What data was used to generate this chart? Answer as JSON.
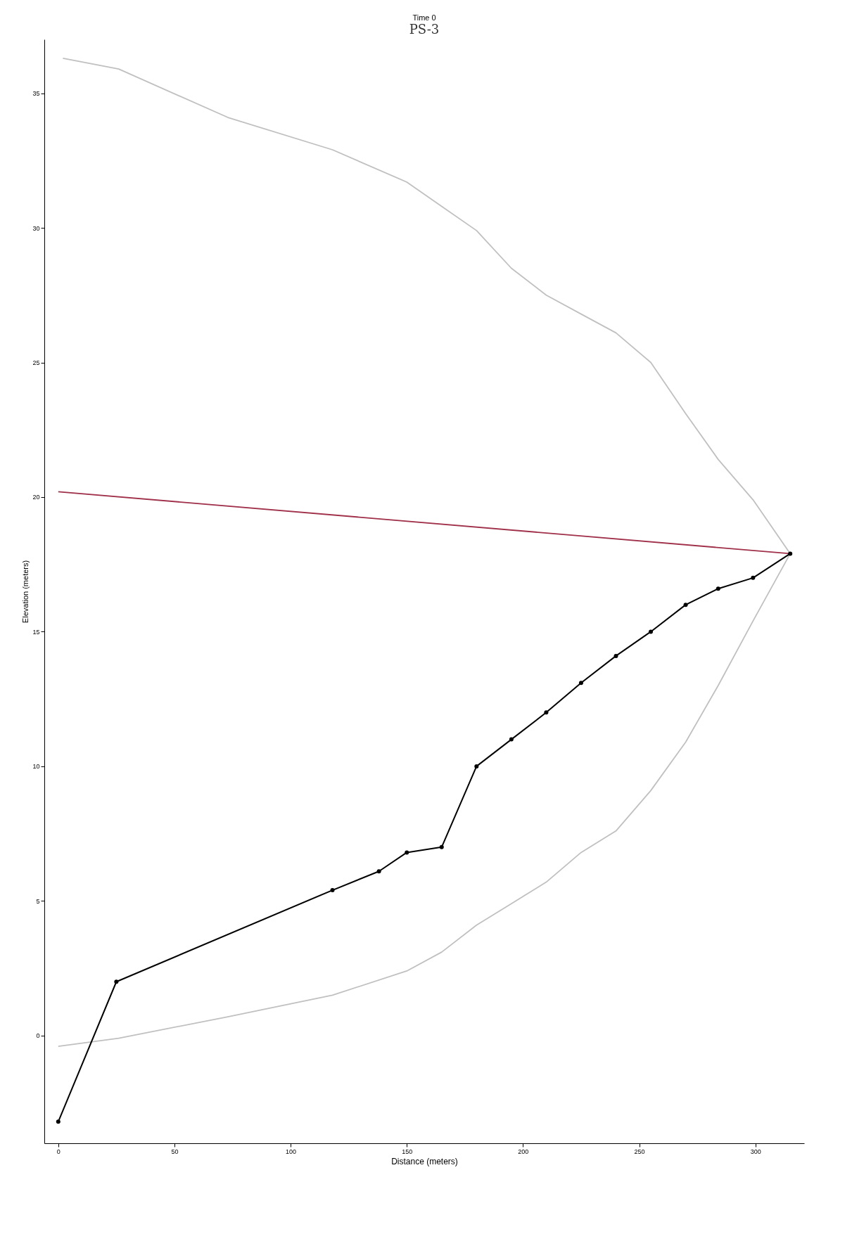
{
  "chart_data": {
    "type": "line",
    "title": "Time 0",
    "xlabel": "Distance (meters)",
    "ylabel": "Elevation (meters)",
    "annotations": [
      "PS-3"
    ],
    "xlim": [
      -6,
      321
    ],
    "xticks": [
      0,
      50,
      100,
      150,
      200,
      250,
      300
    ],
    "ylim": [
      -4,
      37
    ],
    "yticks": [
      0,
      5,
      10,
      15,
      20,
      25,
      30,
      35
    ],
    "grid": false,
    "line_style": "solid",
    "series": [
      {
        "color": "#c0c0c0",
        "marker": "none",
        "x": [
          2,
          26,
          73,
          118,
          150,
          165,
          180,
          195,
          210,
          225,
          240,
          255,
          270,
          284,
          299,
          315
        ],
        "values": [
          36.3,
          35.9,
          34.1,
          32.9,
          31.7,
          30.8,
          29.9,
          28.5,
          27.5,
          26.8,
          26.1,
          25.0,
          23.1,
          21.4,
          19.9,
          17.9
        ]
      },
      {
        "color": "#c0c0c0",
        "marker": "none",
        "x": [
          0,
          26,
          73,
          118,
          150,
          165,
          180,
          195,
          210,
          225,
          240,
          255,
          270,
          284,
          299,
          315
        ],
        "values": [
          -0.4,
          -0.1,
          0.7,
          1.5,
          2.4,
          3.1,
          4.1,
          4.9,
          5.7,
          6.8,
          7.6,
          9.1,
          10.9,
          13.0,
          15.4,
          17.9
        ]
      },
      {
        "color": "#a0304a",
        "marker": "none",
        "x": [
          0,
          315
        ],
        "values": [
          20.2,
          17.9
        ]
      },
      {
        "color": "#000000",
        "marker": "circle",
        "x": [
          0,
          25,
          118,
          138,
          150,
          165,
          180,
          195,
          210,
          225,
          240,
          255,
          270,
          284,
          299,
          315
        ],
        "values": [
          -3.2,
          2.0,
          5.4,
          6.1,
          6.8,
          7.0,
          10.0,
          11.0,
          12.0,
          13.1,
          14.1,
          15.0,
          16.0,
          16.6,
          17.0,
          17.9
        ]
      }
    ]
  }
}
